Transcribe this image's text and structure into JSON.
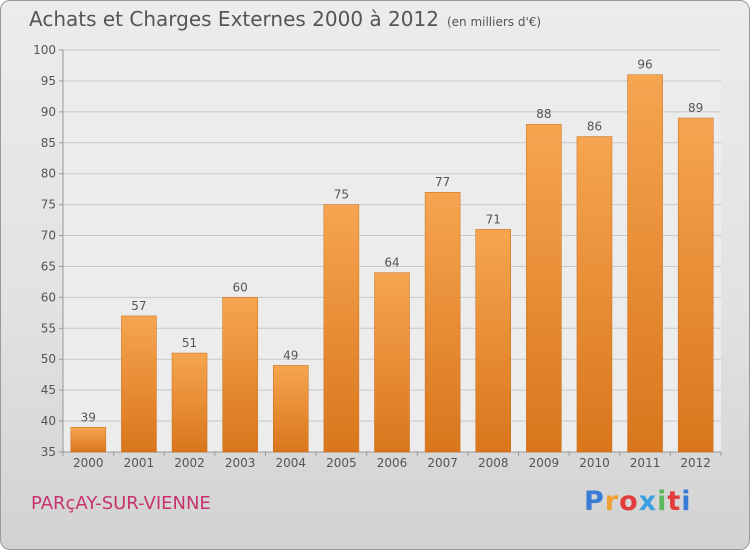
{
  "header": {
    "title": "Achats et Charges Externes 2000 à 2012",
    "unit": "(en milliers d'€)"
  },
  "footer": {
    "commune": "PARçAY-SUR-VIENNE",
    "logo_letters": [
      "P",
      "r",
      "o",
      "x",
      "i",
      "t",
      "i"
    ],
    "logo_colors": [
      "#3a7bd5",
      "#f0a030",
      "#e23c3c",
      "#3aa0e0",
      "#5cb85c",
      "#e23c3c",
      "#3a7bd5"
    ]
  },
  "colors": {
    "bar_top": "#f6a550",
    "bar_bottom": "#d9761c",
    "grid": "#c8c8c8",
    "axis": "#999999",
    "title": "#555555",
    "commune": "#c8326e"
  },
  "chart_data": {
    "type": "bar",
    "categories": [
      "2000",
      "2001",
      "2002",
      "2003",
      "2004",
      "2005",
      "2006",
      "2007",
      "2008",
      "2009",
      "2010",
      "2011",
      "2012"
    ],
    "values": [
      39,
      57,
      51,
      60,
      49,
      75,
      64,
      77,
      71,
      88,
      86,
      96,
      89
    ],
    "data_labels": [
      "39",
      "57",
      "51",
      "60",
      "49",
      "75",
      "64",
      "77",
      "71",
      "88",
      "86",
      "96",
      "89"
    ],
    "ylim": [
      35,
      100
    ],
    "yticks": [
      35,
      40,
      45,
      50,
      55,
      60,
      65,
      70,
      75,
      80,
      85,
      90,
      95,
      100
    ],
    "grid": true,
    "legend": "none"
  }
}
